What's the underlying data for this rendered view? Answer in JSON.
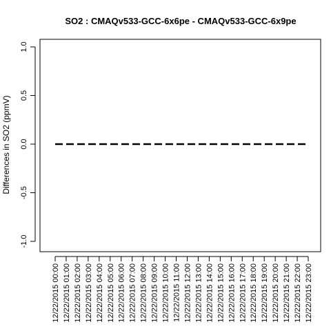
{
  "chart_data": {
    "type": "line",
    "title": "SO2 : CMAQv533-GCC-6x6pe - CMAQv533-GCC-6x9pe",
    "xlabel": "",
    "ylabel": "Differences in SO2 (ppmV)",
    "ylim": [
      -1.0,
      1.0
    ],
    "yticks": [
      "-1.0",
      "-0.5",
      "0.0",
      "0.5",
      "1.0"
    ],
    "ytick_values": [
      -1.0,
      -0.5,
      0.0,
      0.5,
      1.0
    ],
    "categories": [
      "12/22/2015 00:00",
      "12/22/2015 01:00",
      "12/22/2015 02:00",
      "12/22/2015 03:00",
      "12/22/2015 04:00",
      "12/22/2015 05:00",
      "12/22/2015 06:00",
      "12/22/2015 07:00",
      "12/22/2015 08:00",
      "12/22/2015 09:00",
      "12/22/2015 10:00",
      "12/22/2015 11:00",
      "12/22/2015 12:00",
      "12/22/2015 13:00",
      "12/22/2015 14:00",
      "12/22/2015 15:00",
      "12/22/2015 16:00",
      "12/22/2015 17:00",
      "12/22/2015 18:00",
      "12/22/2015 19:00",
      "12/22/2015 20:00",
      "12/22/2015 21:00",
      "12/22/2015 22:00",
      "12/22/2015 23:00"
    ],
    "series": [
      {
        "values": [
          0,
          0,
          0,
          0,
          0,
          0,
          0,
          0,
          0,
          0,
          0,
          0,
          0,
          0,
          0,
          0,
          0,
          0,
          0,
          0,
          0,
          0,
          0,
          0
        ],
        "line_style": "dashed",
        "color": "#000000"
      }
    ],
    "grid": false,
    "legend": "none"
  }
}
